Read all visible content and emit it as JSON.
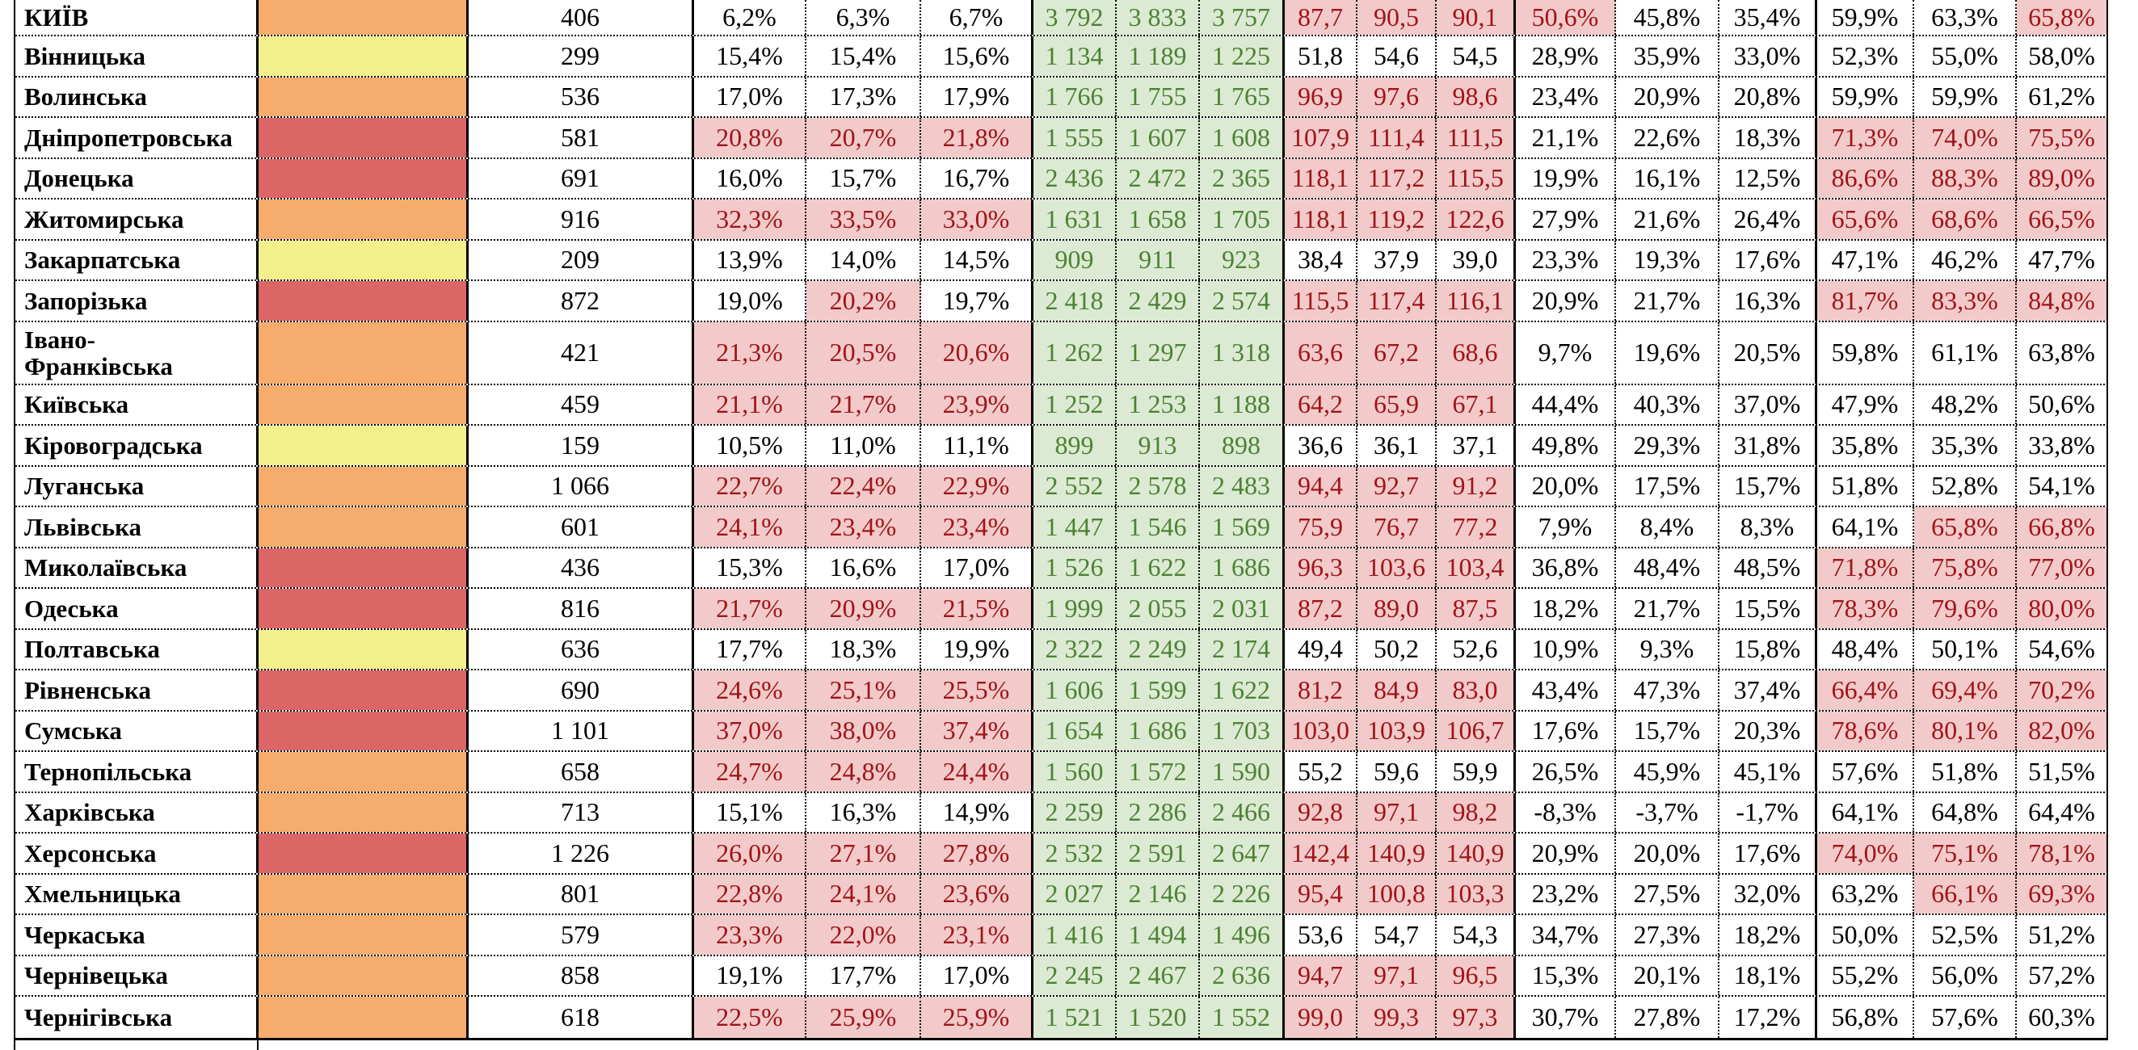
{
  "page": {
    "background": "#ffffff"
  },
  "colors": {
    "swatch_orange": "#f6ac6c",
    "swatch_yellow": "#f3f08b",
    "swatch_red": "#dc6566",
    "highlight_pink_bg": "#f2caca",
    "highlight_dark_red_text": "#a01318",
    "green_bg": "#dcead3",
    "green_text": "#4b8233",
    "grid": "#000000"
  },
  "table": {
    "highlight_rules": {
      "pct_group1_gt": 20,
      "decimal_group_gt": 60,
      "pct_group2_gte": 50,
      "pct_group3_gt": 65
    },
    "rows": [
      {
        "name": "КИЇВ",
        "swatch": "orange",
        "value": "406",
        "pct1": [
          "6,2%",
          "6,3%",
          "6,7%"
        ],
        "abs": [
          "3 792",
          "3 833",
          "3 757"
        ],
        "dec": [
          "87,7",
          "90,5",
          "90,1"
        ],
        "pct2": [
          "50,6%",
          "45,8%",
          "35,4%"
        ],
        "pct3": [
          "59,9%",
          "63,3%",
          "65,8%"
        ]
      },
      {
        "name": "Вінницька",
        "swatch": "yellow",
        "value": "299",
        "pct1": [
          "15,4%",
          "15,4%",
          "15,6%"
        ],
        "abs": [
          "1 134",
          "1 189",
          "1 225"
        ],
        "dec": [
          "51,8",
          "54,6",
          "54,5"
        ],
        "pct2": [
          "28,9%",
          "35,9%",
          "33,0%"
        ],
        "pct3": [
          "52,3%",
          "55,0%",
          "58,0%"
        ]
      },
      {
        "name": "Волинська",
        "swatch": "orange",
        "value": "536",
        "pct1": [
          "17,0%",
          "17,3%",
          "17,9%"
        ],
        "abs": [
          "1 766",
          "1 755",
          "1 765"
        ],
        "dec": [
          "96,9",
          "97,6",
          "98,6"
        ],
        "pct2": [
          "23,4%",
          "20,9%",
          "20,8%"
        ],
        "pct3": [
          "59,9%",
          "59,9%",
          "61,2%"
        ]
      },
      {
        "name": "Дніпропетровська",
        "swatch": "red",
        "value": "581",
        "pct1": [
          "20,8%",
          "20,7%",
          "21,8%"
        ],
        "abs": [
          "1 555",
          "1 607",
          "1 608"
        ],
        "dec": [
          "107,9",
          "111,4",
          "111,5"
        ],
        "pct2": [
          "21,1%",
          "22,6%",
          "18,3%"
        ],
        "pct3": [
          "71,3%",
          "74,0%",
          "75,5%"
        ]
      },
      {
        "name": "Донецька",
        "swatch": "red",
        "value": "691",
        "pct1": [
          "16,0%",
          "15,7%",
          "16,7%"
        ],
        "abs": [
          "2 436",
          "2 472",
          "2 365"
        ],
        "dec": [
          "118,1",
          "117,2",
          "115,5"
        ],
        "pct2": [
          "19,9%",
          "16,1%",
          "12,5%"
        ],
        "pct3": [
          "86,6%",
          "88,3%",
          "89,0%"
        ]
      },
      {
        "name": "Житомирська",
        "swatch": "orange",
        "value": "916",
        "pct1": [
          "32,3%",
          "33,5%",
          "33,0%"
        ],
        "abs": [
          "1 631",
          "1 658",
          "1 705"
        ],
        "dec": [
          "118,1",
          "119,2",
          "122,6"
        ],
        "pct2": [
          "27,9%",
          "21,6%",
          "26,4%"
        ],
        "pct3": [
          "65,6%",
          "68,6%",
          "66,5%"
        ]
      },
      {
        "name": "Закарпатська",
        "swatch": "yellow",
        "value": "209",
        "pct1": [
          "13,9%",
          "14,0%",
          "14,5%"
        ],
        "abs": [
          "909",
          "911",
          "923"
        ],
        "dec": [
          "38,4",
          "37,9",
          "39,0"
        ],
        "pct2": [
          "23,3%",
          "19,3%",
          "17,6%"
        ],
        "pct3": [
          "47,1%",
          "46,2%",
          "47,7%"
        ]
      },
      {
        "name": "Запорізька",
        "swatch": "red",
        "value": "872",
        "pct1": [
          "19,0%",
          "20,2%",
          "19,7%"
        ],
        "abs": [
          "2 418",
          "2 429",
          "2 574"
        ],
        "dec": [
          "115,5",
          "117,4",
          "116,1"
        ],
        "pct2": [
          "20,9%",
          "21,7%",
          "16,3%"
        ],
        "pct3": [
          "81,7%",
          "83,3%",
          "84,8%"
        ]
      },
      {
        "name": "Івано-\nФранківська",
        "swatch": "orange",
        "value": "421",
        "tall": true,
        "pct1": [
          "21,3%",
          "20,5%",
          "20,6%"
        ],
        "abs": [
          "1 262",
          "1 297",
          "1 318"
        ],
        "dec": [
          "63,6",
          "67,2",
          "68,6"
        ],
        "pct2": [
          "9,7%",
          "19,6%",
          "20,5%"
        ],
        "pct3": [
          "59,8%",
          "61,1%",
          "63,8%"
        ]
      },
      {
        "name": "Київська",
        "swatch": "orange",
        "value": "459",
        "pct1": [
          "21,1%",
          "21,7%",
          "23,9%"
        ],
        "abs": [
          "1 252",
          "1 253",
          "1 188"
        ],
        "dec": [
          "64,2",
          "65,9",
          "67,1"
        ],
        "pct2": [
          "44,4%",
          "40,3%",
          "37,0%"
        ],
        "pct3": [
          "47,9%",
          "48,2%",
          "50,6%"
        ]
      },
      {
        "name": "Кіровоградська",
        "swatch": "yellow",
        "value": "159",
        "pct1": [
          "10,5%",
          "11,0%",
          "11,1%"
        ],
        "abs": [
          "899",
          "913",
          "898"
        ],
        "dec": [
          "36,6",
          "36,1",
          "37,1"
        ],
        "pct2": [
          "49,8%",
          "29,3%",
          "31,8%"
        ],
        "pct3": [
          "35,8%",
          "35,3%",
          "33,8%"
        ]
      },
      {
        "name": "Луганська",
        "swatch": "orange",
        "value": "1 066",
        "pct1": [
          "22,7%",
          "22,4%",
          "22,9%"
        ],
        "abs": [
          "2 552",
          "2 578",
          "2 483"
        ],
        "dec": [
          "94,4",
          "92,7",
          "91,2"
        ],
        "pct2": [
          "20,0%",
          "17,5%",
          "15,7%"
        ],
        "pct3": [
          "51,8%",
          "52,8%",
          "54,1%"
        ]
      },
      {
        "name": "Львівська",
        "swatch": "orange",
        "value": "601",
        "pct1": [
          "24,1%",
          "23,4%",
          "23,4%"
        ],
        "abs": [
          "1 447",
          "1 546",
          "1 569"
        ],
        "dec": [
          "75,9",
          "76,7",
          "77,2"
        ],
        "pct2": [
          "7,9%",
          "8,4%",
          "8,3%"
        ],
        "pct3": [
          "64,1%",
          "65,8%",
          "66,8%"
        ]
      },
      {
        "name": "Миколаївська",
        "swatch": "red",
        "value": "436",
        "pct1": [
          "15,3%",
          "16,6%",
          "17,0%"
        ],
        "abs": [
          "1 526",
          "1 622",
          "1 686"
        ],
        "dec": [
          "96,3",
          "103,6",
          "103,4"
        ],
        "pct2": [
          "36,8%",
          "48,4%",
          "48,5%"
        ],
        "pct3": [
          "71,8%",
          "75,8%",
          "77,0%"
        ]
      },
      {
        "name": "Одеська",
        "swatch": "red",
        "value": "816",
        "pct1": [
          "21,7%",
          "20,9%",
          "21,5%"
        ],
        "abs": [
          "1 999",
          "2 055",
          "2 031"
        ],
        "dec": [
          "87,2",
          "89,0",
          "87,5"
        ],
        "pct2": [
          "18,2%",
          "21,7%",
          "15,5%"
        ],
        "pct3": [
          "78,3%",
          "79,6%",
          "80,0%"
        ]
      },
      {
        "name": "Полтавська",
        "swatch": "yellow",
        "value": "636",
        "pct1": [
          "17,7%",
          "18,3%",
          "19,9%"
        ],
        "abs": [
          "2 322",
          "2 249",
          "2 174"
        ],
        "dec": [
          "49,4",
          "50,2",
          "52,6"
        ],
        "pct2": [
          "10,9%",
          "9,3%",
          "15,8%"
        ],
        "pct3": [
          "48,4%",
          "50,1%",
          "54,6%"
        ]
      },
      {
        "name": "Рівненська",
        "swatch": "red",
        "value": "690",
        "pct1": [
          "24,6%",
          "25,1%",
          "25,5%"
        ],
        "abs": [
          "1 606",
          "1 599",
          "1 622"
        ],
        "dec": [
          "81,2",
          "84,9",
          "83,0"
        ],
        "pct2": [
          "43,4%",
          "47,3%",
          "37,4%"
        ],
        "pct3": [
          "66,4%",
          "69,4%",
          "70,2%"
        ]
      },
      {
        "name": "Сумська",
        "swatch": "red",
        "value": "1 101",
        "pct1": [
          "37,0%",
          "38,0%",
          "37,4%"
        ],
        "abs": [
          "1 654",
          "1 686",
          "1 703"
        ],
        "dec": [
          "103,0",
          "103,9",
          "106,7"
        ],
        "pct2": [
          "17,6%",
          "15,7%",
          "20,3%"
        ],
        "pct3": [
          "78,6%",
          "80,1%",
          "82,0%"
        ]
      },
      {
        "name": "Тернопільська",
        "swatch": "orange",
        "value": "658",
        "pct1": [
          "24,7%",
          "24,8%",
          "24,4%"
        ],
        "abs": [
          "1 560",
          "1 572",
          "1 590"
        ],
        "dec": [
          "55,2",
          "59,6",
          "59,9"
        ],
        "pct2": [
          "26,5%",
          "45,9%",
          "45,1%"
        ],
        "pct3": [
          "57,6%",
          "51,8%",
          "51,5%"
        ]
      },
      {
        "name": "Харківська",
        "swatch": "orange",
        "value": "713",
        "pct1": [
          "15,1%",
          "16,3%",
          "14,9%"
        ],
        "abs": [
          "2 259",
          "2 286",
          "2 466"
        ],
        "dec": [
          "92,8",
          "97,1",
          "98,2"
        ],
        "pct2": [
          "-8,3%",
          "-3,7%",
          "-1,7%"
        ],
        "pct3": [
          "64,1%",
          "64,8%",
          "64,4%"
        ]
      },
      {
        "name": "Херсонська",
        "swatch": "red",
        "value": "1 226",
        "pct1": [
          "26,0%",
          "27,1%",
          "27,8%"
        ],
        "abs": [
          "2 532",
          "2 591",
          "2 647"
        ],
        "dec": [
          "142,4",
          "140,9",
          "140,9"
        ],
        "pct2": [
          "20,9%",
          "20,0%",
          "17,6%"
        ],
        "pct3": [
          "74,0%",
          "75,1%",
          "78,1%"
        ]
      },
      {
        "name": "Хмельницька",
        "swatch": "orange",
        "value": "801",
        "pct1": [
          "22,8%",
          "24,1%",
          "23,6%"
        ],
        "abs": [
          "2 027",
          "2 146",
          "2 226"
        ],
        "dec": [
          "95,4",
          "100,8",
          "103,3"
        ],
        "pct2": [
          "23,2%",
          "27,5%",
          "32,0%"
        ],
        "pct3": [
          "63,2%",
          "66,1%",
          "69,3%"
        ]
      },
      {
        "name": "Черкаська",
        "swatch": "orange",
        "value": "579",
        "pct1": [
          "23,3%",
          "22,0%",
          "23,1%"
        ],
        "abs": [
          "1 416",
          "1 494",
          "1 496"
        ],
        "dec": [
          "53,6",
          "54,7",
          "54,3"
        ],
        "pct2": [
          "34,7%",
          "27,3%",
          "18,2%"
        ],
        "pct3": [
          "50,0%",
          "52,5%",
          "51,2%"
        ]
      },
      {
        "name": "Чернівецька",
        "swatch": "orange",
        "value": "858",
        "pct1": [
          "19,1%",
          "17,7%",
          "17,0%"
        ],
        "abs": [
          "2 245",
          "2 467",
          "2 636"
        ],
        "dec": [
          "94,7",
          "97,1",
          "96,5"
        ],
        "pct2": [
          "15,3%",
          "20,1%",
          "18,1%"
        ],
        "pct3": [
          "55,2%",
          "56,0%",
          "57,2%"
        ]
      },
      {
        "name": "Чернігівська",
        "swatch": "orange",
        "value": "618",
        "pct1": [
          "22,5%",
          "25,9%",
          "25,9%"
        ],
        "abs": [
          "1 521",
          "1 520",
          "1 552"
        ],
        "dec": [
          "99,0",
          "99,3",
          "97,3"
        ],
        "pct2": [
          "30,7%",
          "27,8%",
          "17,2%"
        ],
        "pct3": [
          "56,8%",
          "57,6%",
          "60,3%"
        ]
      }
    ]
  }
}
